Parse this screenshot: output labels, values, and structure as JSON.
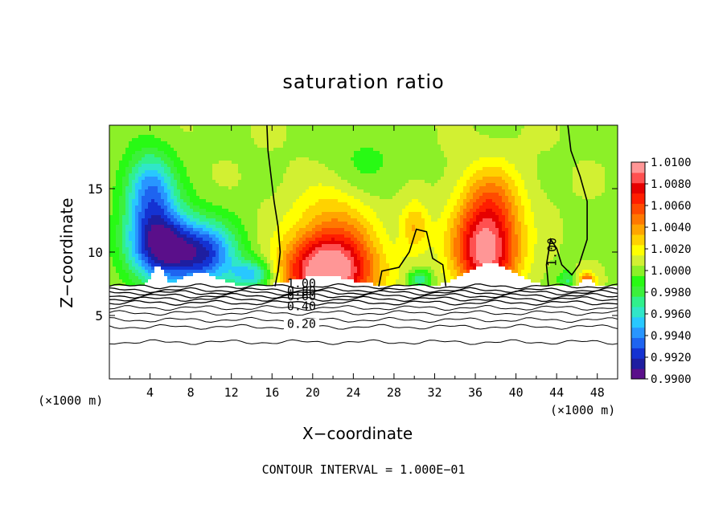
{
  "chart_data": {
    "type": "heatmap",
    "title": "saturation ratio",
    "xlabel": "X−coordinate",
    "ylabel": "Z−coordinate",
    "x_unit_left": "(×1000 m)",
    "x_unit_right": "(×1000 m)",
    "footer": "CONTOUR INTERVAL = 1.000E−01",
    "xlim": [
      0,
      50
    ],
    "ylim": [
      0,
      20
    ],
    "xticks": [
      "4",
      "8",
      "12",
      "16",
      "20",
      "24",
      "28",
      "32",
      "36",
      "40",
      "44",
      "48"
    ],
    "xtick_values": [
      4,
      8,
      12,
      16,
      20,
      24,
      28,
      32,
      36,
      40,
      44,
      48
    ],
    "yticks": [
      "5",
      "10",
      "15"
    ],
    "ytick_values": [
      5,
      10,
      15
    ],
    "colorbar": {
      "labels": [
        "1.0100",
        "1.0080",
        "1.0060",
        "1.0040",
        "1.0020",
        "1.0000",
        "0.9980",
        "0.9960",
        "0.9940",
        "0.9920",
        "0.9900"
      ],
      "min": 0.99,
      "max": 1.01,
      "colors": [
        "#5a0f8a",
        "#1e1ea0",
        "#1432d2",
        "#1e64f0",
        "#2896ff",
        "#28c8ff",
        "#30e6c8",
        "#30f08c",
        "#3cf03c",
        "#28fa14",
        "#8cf028",
        "#d2f032",
        "#ffff00",
        "#ffd200",
        "#ffa500",
        "#ff7800",
        "#ff4b00",
        "#ff1e00",
        "#e60000",
        "#ff5050",
        "#ff9696"
      ]
    },
    "contour_labels": [
      "1.00",
      "0.80",
      "0.60",
      "0.40",
      "0.20",
      "1.00"
    ],
    "contour_levels": [
      0.2,
      0.4,
      0.6,
      0.8,
      1.0
    ],
    "saturated_layer_base_z": 7.3
  }
}
